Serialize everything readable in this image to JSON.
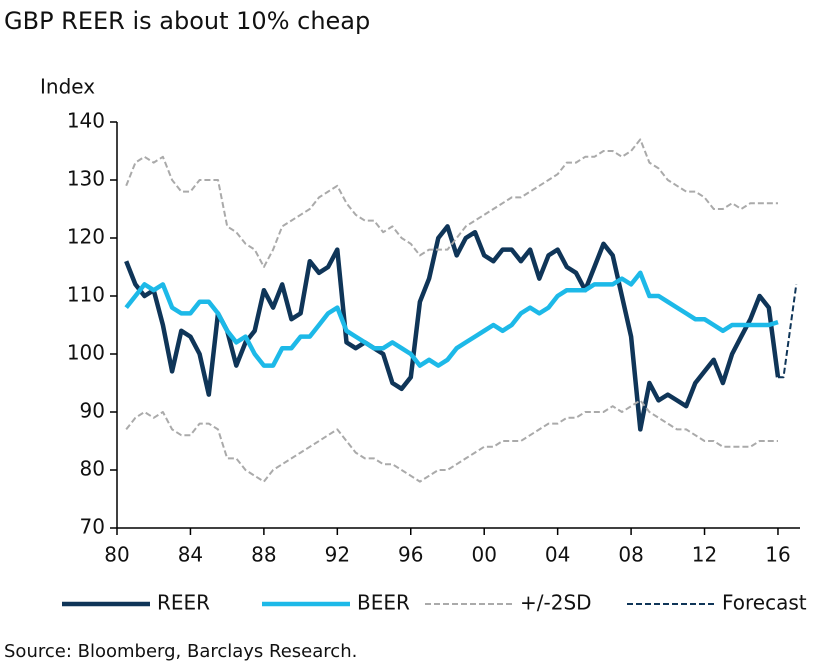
{
  "chart_data": {
    "type": "line",
    "title": "GBP REER is about 10% cheap",
    "y_label": "Index",
    "source": "Source: Bloomberg, Barclays Research.",
    "x": [
      1980.5,
      1981,
      1981.5,
      1982,
      1982.5,
      1983,
      1983.5,
      1984,
      1984.5,
      1985,
      1985.5,
      1986,
      1986.5,
      1987,
      1987.5,
      1988,
      1988.5,
      1989,
      1989.5,
      1990,
      1990.5,
      1991,
      1991.5,
      1992,
      1992.5,
      1993,
      1993.5,
      1994,
      1994.5,
      1995,
      1995.5,
      1996,
      1996.5,
      1997,
      1997.5,
      1998,
      1998.5,
      1999,
      1999.5,
      2000,
      2000.5,
      2001,
      2001.5,
      2002,
      2002.5,
      2003,
      2003.5,
      2004,
      2004.5,
      2005,
      2005.5,
      2006,
      2006.5,
      2007,
      2007.5,
      2008,
      2008.5,
      2009,
      2009.5,
      2010,
      2010.5,
      2011,
      2011.5,
      2012,
      2012.5,
      2013,
      2013.5,
      2014,
      2014.5,
      2015,
      2015.5,
      2016
    ],
    "series": [
      {
        "name": "REER",
        "color": "#0f3558",
        "dashed": false,
        "values": [
          116,
          112,
          110,
          111,
          105,
          97,
          104,
          103,
          100,
          93,
          107,
          104,
          98,
          102,
          104,
          111,
          108,
          112,
          106,
          107,
          116,
          114,
          115,
          118,
          102,
          101,
          102,
          101,
          100,
          95,
          94,
          96,
          109,
          113,
          120,
          122,
          117,
          120,
          121,
          117,
          116,
          118,
          118,
          116,
          118,
          113,
          117,
          118,
          115,
          114,
          111,
          115,
          119,
          117,
          110,
          103,
          87,
          95,
          92,
          93,
          92,
          91,
          95,
          97,
          99,
          95,
          100,
          103,
          106,
          110,
          108,
          96
        ]
      },
      {
        "name": "BEER",
        "color": "#1db9e8",
        "dashed": false,
        "values": [
          108,
          110,
          112,
          111,
          112,
          108,
          107,
          107,
          109,
          109,
          107,
          104,
          102,
          103,
          100,
          98,
          98,
          101,
          101,
          103,
          103,
          105,
          107,
          108,
          104,
          103,
          102,
          101,
          101,
          102,
          101,
          100,
          98,
          99,
          98,
          99,
          101,
          102,
          103,
          104,
          105,
          104,
          105,
          107,
          108,
          107,
          108,
          110,
          111,
          111,
          111,
          112,
          112,
          112,
          113,
          112,
          114,
          110,
          110,
          109,
          108,
          107,
          106,
          106,
          105,
          104,
          105,
          105,
          105,
          105,
          105,
          105.5
        ]
      },
      {
        "name": "+/-2SD",
        "color": "#aaaaaa",
        "dashed": true,
        "values": [
          129,
          133,
          134,
          133,
          134,
          130,
          128,
          128,
          130,
          130,
          130,
          122,
          121,
          119,
          118,
          115,
          118,
          122,
          123,
          124,
          125,
          127,
          128,
          129,
          126,
          124,
          123,
          123,
          121,
          122,
          120,
          119,
          117,
          118,
          118,
          118,
          120,
          122,
          123,
          124,
          125,
          126,
          127,
          127,
          128,
          129,
          130,
          131,
          133,
          133,
          134,
          134,
          135,
          135,
          134,
          135,
          137,
          133,
          132,
          130,
          129,
          128,
          128,
          127,
          125,
          125,
          126,
          125,
          126,
          126,
          126,
          126
        ],
        "lower": [
          87,
          89,
          90,
          89,
          90,
          87,
          86,
          86,
          88,
          88,
          87,
          82,
          82,
          80,
          79,
          78,
          80,
          81,
          82,
          83,
          84,
          85,
          86,
          87,
          85,
          83,
          82,
          82,
          81,
          81,
          80,
          79,
          78,
          79,
          80,
          80,
          81,
          82,
          83,
          84,
          84,
          85,
          85,
          85,
          86,
          87,
          88,
          88,
          89,
          89,
          90,
          90,
          90,
          91,
          90,
          91,
          92,
          90,
          89,
          88,
          87,
          87,
          86,
          85,
          85,
          84,
          84,
          84,
          84,
          85,
          85,
          85
        ]
      },
      {
        "name": "Forecast",
        "color": "#0f3558",
        "dashed": true,
        "x": [
          2016,
          2016.3,
          2017
        ],
        "values": [
          96,
          96,
          112
        ]
      }
    ],
    "xlim": [
      1980,
      2017.2
    ],
    "xticks": [
      {
        "value": 1980,
        "label": "80"
      },
      {
        "value": 1984,
        "label": "84"
      },
      {
        "value": 1988,
        "label": "88"
      },
      {
        "value": 1992,
        "label": "92"
      },
      {
        "value": 1996,
        "label": "96"
      },
      {
        "value": 2000,
        "label": "00"
      },
      {
        "value": 2004,
        "label": "04"
      },
      {
        "value": 2008,
        "label": "08"
      },
      {
        "value": 2012,
        "label": "12"
      },
      {
        "value": 2016,
        "label": "16"
      }
    ],
    "ylim": [
      70,
      140
    ],
    "yticks": [
      70,
      80,
      90,
      100,
      110,
      120,
      130,
      140
    ],
    "grid": false
  }
}
